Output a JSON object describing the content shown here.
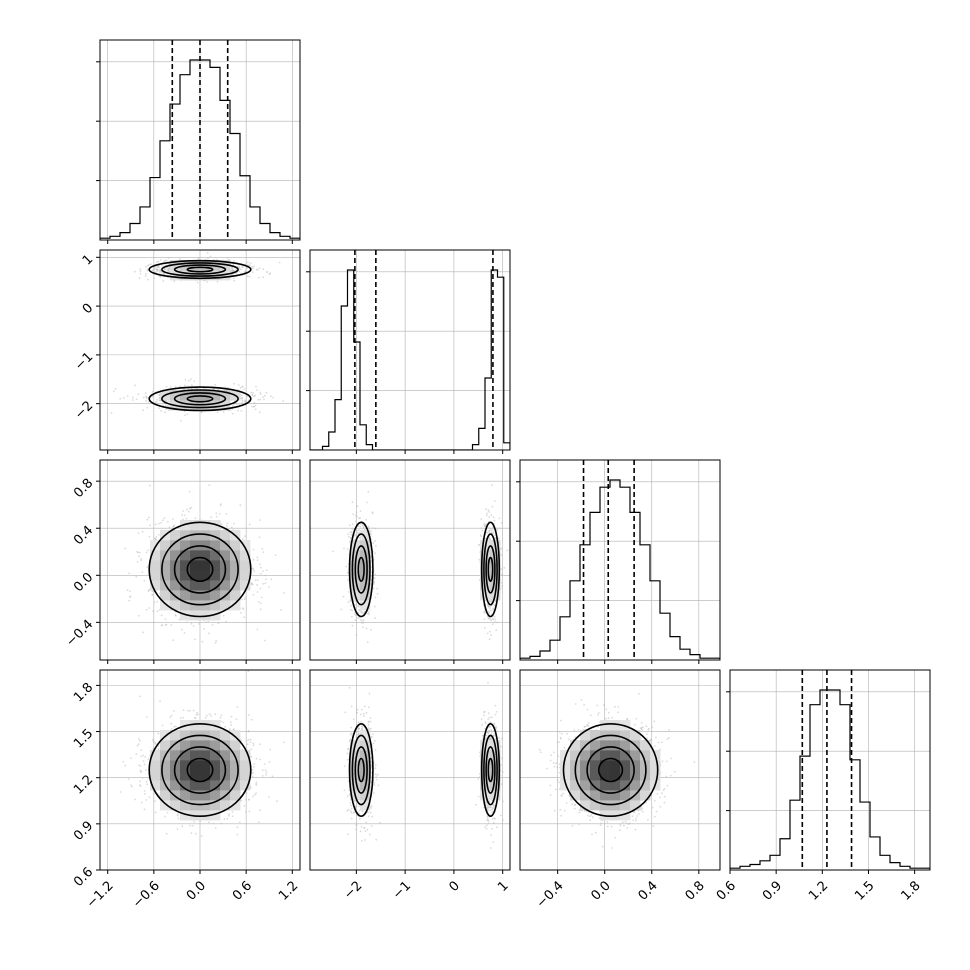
{
  "chart_data": {
    "type": "corner",
    "grid": true,
    "n_params": 4,
    "colors": {
      "line": "#000000",
      "grid": "#b0b0b0",
      "scatter": "#bdbdbd"
    },
    "params": [
      {
        "range": [
          -1.3,
          1.3
        ],
        "ticks": [
          -1.2,
          -0.6,
          0.0,
          0.6,
          1.2
        ],
        "tick_labels": [
          "−1.2",
          "−0.6",
          "0.0",
          "0.6",
          "1.2"
        ],
        "quantiles": [
          -0.36,
          0.0,
          0.36
        ]
      },
      {
        "range": [
          -2.95,
          1.15
        ],
        "ticks": [
          -2,
          -1,
          0,
          1
        ],
        "tick_labels": [
          "−2",
          "−1",
          "0",
          "1"
        ],
        "quantiles": [
          -2.03,
          -1.6,
          0.8
        ]
      },
      {
        "range": [
          -0.72,
          0.98
        ],
        "ticks": [
          -0.4,
          0.0,
          0.4,
          0.8
        ],
        "tick_labels": [
          "−0.4",
          "0.0",
          "0.4",
          "0.8"
        ],
        "quantiles": [
          -0.18,
          0.03,
          0.25
        ]
      },
      {
        "range": [
          0.6,
          1.9
        ],
        "ticks": [
          0.6,
          0.9,
          1.2,
          1.5,
          1.8
        ],
        "tick_labels": [
          "0.6",
          "0.9",
          "1.2",
          "1.5",
          "1.8"
        ],
        "quantiles": [
          1.07,
          1.23,
          1.39
        ]
      }
    ],
    "histograms": [
      {
        "param": 0,
        "bin_edges_range": [
          -1.3,
          1.3
        ],
        "counts": [
          1,
          2,
          4,
          9,
          18,
          34,
          54,
          74,
          90,
          98,
          98,
          94,
          76,
          58,
          35,
          18,
          9,
          4,
          2,
          1
        ]
      },
      {
        "param": 1,
        "bin_edges_range": [
          -2.95,
          1.15
        ],
        "counts": [
          0,
          0,
          2,
          10,
          28,
          80,
          100,
          60,
          14,
          3,
          0,
          0,
          0,
          0,
          0,
          0,
          0,
          0,
          0,
          0,
          0,
          0,
          0,
          0,
          0,
          0,
          3,
          12,
          40,
          100,
          96,
          4
        ]
      },
      {
        "param": 2,
        "bin_edges_range": [
          -0.72,
          0.98
        ],
        "counts": [
          1,
          2,
          5,
          11,
          24,
          44,
          64,
          82,
          96,
          100,
          96,
          82,
          64,
          44,
          26,
          13,
          6,
          3,
          1,
          1
        ]
      },
      {
        "param": 3,
        "bin_edges_range": [
          0.6,
          1.9
        ],
        "counts": [
          1,
          2,
          3,
          5,
          8,
          17,
          38,
          62,
          90,
          98,
          98,
          90,
          60,
          37,
          18,
          8,
          4,
          2,
          1,
          1
        ]
      }
    ],
    "distributions": [
      {
        "components": [
          {
            "mu": 0.0,
            "sd": 0.33
          }
        ]
      },
      {
        "components": [
          {
            "mu": -1.9,
            "sd": 0.12,
            "w": 0.5
          },
          {
            "mu": 0.75,
            "sd": 0.09,
            "w": 0.5
          }
        ]
      },
      {
        "components": [
          {
            "mu": 0.05,
            "sd": 0.2
          }
        ]
      },
      {
        "components": [
          {
            "mu": 1.25,
            "sd": 0.15
          }
        ]
      }
    ],
    "n_scatter_points": 1500
  }
}
